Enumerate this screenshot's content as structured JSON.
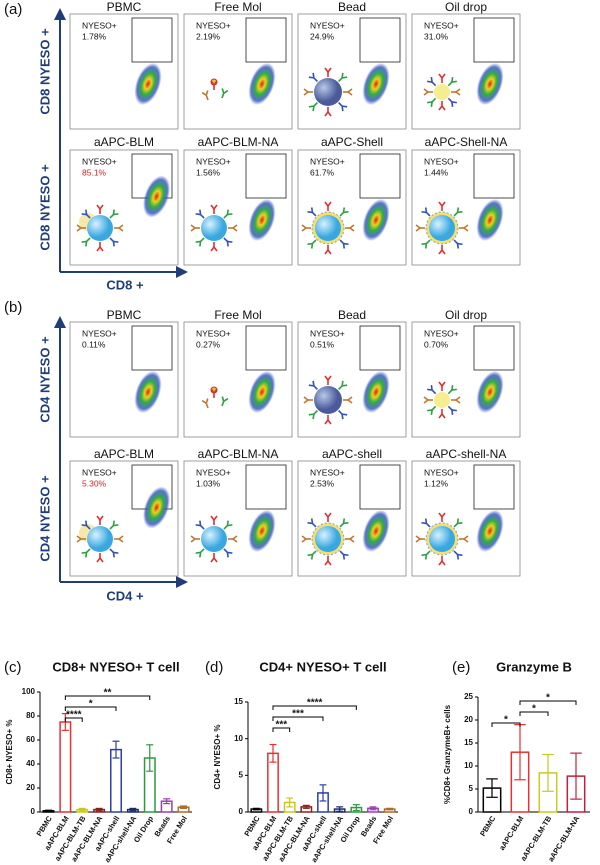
{
  "panels": [
    {
      "label": "(a)",
      "y_axis_label": "CD8 NYESO +",
      "x_axis_label": "CD8 +",
      "plots": [
        {
          "title": "PBMC",
          "gate_label": "NYESO+",
          "percent": "1.78%"
        },
        {
          "title": "Free Mol",
          "gate_label": "NYESO+",
          "percent": "2.19%"
        },
        {
          "title": "Bead",
          "gate_label": "NYESO+",
          "percent": "24.9%"
        },
        {
          "title": "Oil drop",
          "gate_label": "NYESO+",
          "percent": "31.0%"
        },
        {
          "title": "aAPC-BLM",
          "gate_label": "NYESO+",
          "percent": "85.1%",
          "percent_color": "#e02020"
        },
        {
          "title": "aAPC-BLM-NA",
          "gate_label": "NYESO+",
          "percent": "1.56%"
        },
        {
          "title": "aAPC-Shell",
          "gate_label": "NYESO+",
          "percent": "61.7%"
        },
        {
          "title": "aAPC-Shell-NA",
          "gate_label": "NYESO+",
          "percent": "1.44%"
        }
      ]
    },
    {
      "label": "(b)",
      "y_axis_label": "CD4 NYESO +",
      "x_axis_label": "CD4 +",
      "plots": [
        {
          "title": "PBMC",
          "gate_label": "NYESO+",
          "percent": "0.11%"
        },
        {
          "title": "Free Mol",
          "gate_label": "NYESO+",
          "percent": "0.27%"
        },
        {
          "title": "Bead",
          "gate_label": "NYESO+",
          "percent": "0.51%"
        },
        {
          "title": "Oil drop",
          "gate_label": "NYESO+",
          "percent": "0.70%"
        },
        {
          "title": "aAPC-BLM",
          "gate_label": "NYESO+",
          "percent": "5.30%",
          "percent_color": "#e02020"
        },
        {
          "title": "aAPC-BLM-NA",
          "gate_label": "NYESO+",
          "percent": "1.03%"
        },
        {
          "title": "aAPC-shell",
          "gate_label": "NYESO+",
          "percent": "2.53%"
        },
        {
          "title": "aAPC-shell-NA",
          "gate_label": "NYESO+",
          "percent": "1.12%"
        }
      ]
    }
  ],
  "chart_data": [
    {
      "type": "bar",
      "panel_label": "(c)",
      "title": "CD8+ NYESO+ T cell",
      "y_label": "CD8+ NYESO+ %",
      "categories": [
        "PBMC",
        "aAPC-BLM",
        "aAPC-BLM-TB",
        "aAPC-BLM-NA",
        "aAPC-shell",
        "aAPC-shell-NA",
        "Oil Drop",
        "Beads",
        "Free Mol"
      ],
      "values": [
        1,
        75,
        2,
        2,
        52,
        2,
        45,
        9,
        4
      ],
      "errors": [
        0.5,
        7,
        1,
        1,
        7,
        1,
        11,
        2,
        1
      ],
      "colors": [
        "#000000",
        "#e83030",
        "#c8c820",
        "#8b2020",
        "#2a3fa8",
        "#1a2a6a",
        "#2a9a3a",
        "#9a40b0",
        "#b06a2a"
      ],
      "ylim": [
        0,
        100
      ],
      "yticks": [
        0,
        20,
        40,
        60,
        80,
        100
      ],
      "annotations": [
        {
          "text": "****",
          "between": [
            1,
            2
          ]
        },
        {
          "text": "*",
          "between": [
            1,
            4
          ]
        },
        {
          "text": "**",
          "between": [
            1,
            6
          ]
        }
      ]
    },
    {
      "type": "bar",
      "panel_label": "(d)",
      "title": "CD4+ NYESO+ T cell",
      "y_label": "CD4+ NYESO+ %",
      "categories": [
        "PBMC",
        "aAPC-BLM",
        "aAPC-BLM-TB",
        "aAPC-BLM-NA",
        "aAPC-shell",
        "aAPC-shell-NA",
        "Oil Drop",
        "Beads",
        "Free Mol"
      ],
      "values": [
        0.4,
        8,
        1.3,
        0.7,
        2.6,
        0.4,
        0.6,
        0.5,
        0.4
      ],
      "errors": [
        0.1,
        1.2,
        0.6,
        0.2,
        1.1,
        0.3,
        0.4,
        0.2,
        0.1
      ],
      "colors": [
        "#000000",
        "#e83030",
        "#c8c820",
        "#8b2020",
        "#2a3fa8",
        "#1a2a6a",
        "#2a9a3a",
        "#9a40b0",
        "#b06a2a"
      ],
      "ylim": [
        0,
        15
      ],
      "yticks": [
        0,
        5,
        10,
        15
      ],
      "annotations": [
        {
          "text": "***",
          "between": [
            1,
            2
          ]
        },
        {
          "text": "***",
          "between": [
            1,
            4
          ]
        },
        {
          "text": "****",
          "between": [
            1,
            6
          ]
        }
      ]
    },
    {
      "type": "bar",
      "panel_label": "(e)",
      "title": "Granzyme B",
      "y_label": "%CD8+ GranzymeB+ cells",
      "categories": [
        "PBMC",
        "aAPC-BLM",
        "aAPC-BLM-TB",
        "aAPC-BLM-NA"
      ],
      "values": [
        5.2,
        13,
        8.5,
        7.8
      ],
      "errors": [
        2,
        6,
        4,
        5
      ],
      "colors": [
        "#000000",
        "#e83030",
        "#c8c820",
        "#c02040"
      ],
      "ylim": [
        0,
        25
      ],
      "yticks": [
        0,
        5,
        10,
        15,
        20,
        25
      ],
      "annotations": [
        {
          "text": "*",
          "between": [
            0,
            1
          ]
        },
        {
          "text": "*",
          "between": [
            1,
            2
          ]
        },
        {
          "text": "*",
          "between": [
            1,
            3
          ]
        }
      ]
    }
  ]
}
